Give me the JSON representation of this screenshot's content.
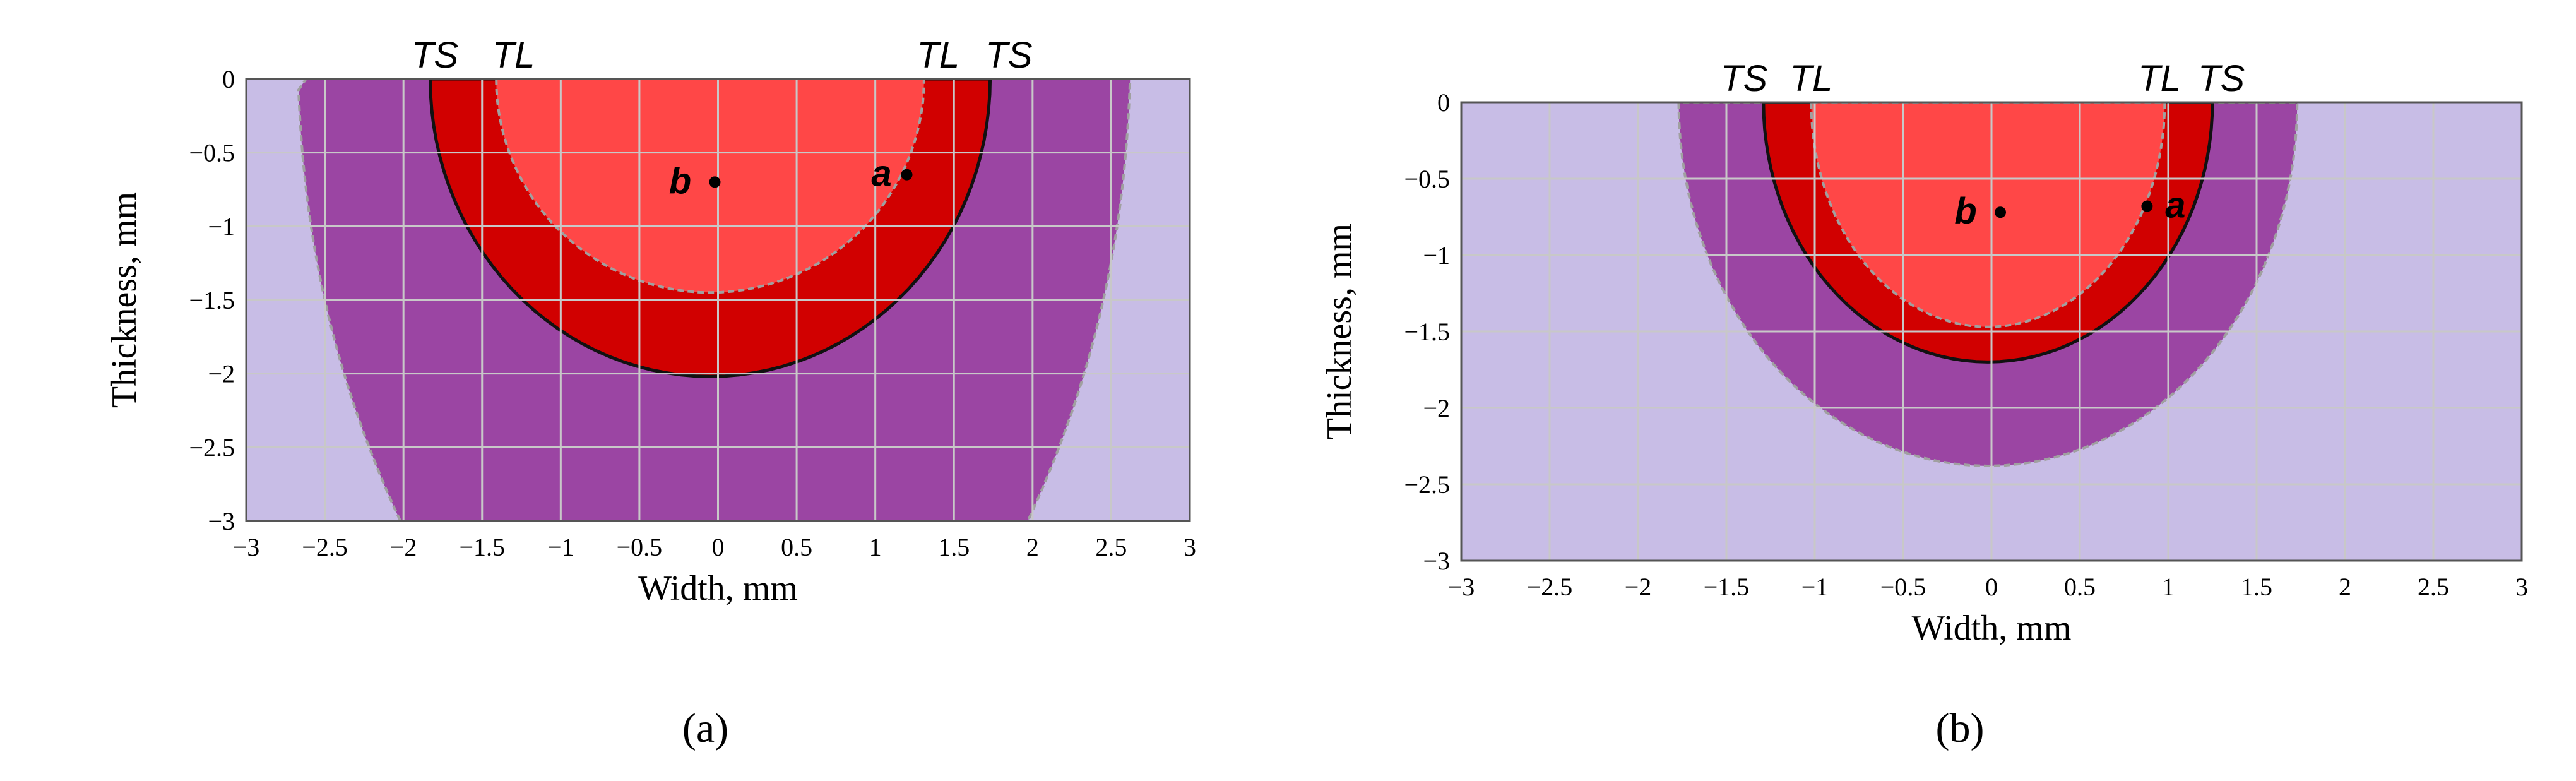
{
  "chart_data": [
    {
      "type": "area",
      "panel_label": "(a)",
      "xlabel": "Width, mm",
      "ylabel": "Thickness, mm",
      "xlim": [
        -3,
        3
      ],
      "ylim": [
        -3,
        0
      ],
      "x_ticks": [
        "−3",
        "−2.5",
        "−2",
        "−1.5",
        "−1",
        "−0.5",
        "0",
        "0.5",
        "1",
        "1.5",
        "2",
        "2.5",
        "3"
      ],
      "y_ticks": [
        "0",
        "−0.5",
        "−1",
        "−1.5",
        "−2",
        "−2.5",
        "−3"
      ],
      "grid": true,
      "regions": [
        {
          "label": "TS",
          "half_width_top": 1.78,
          "color": "#9b45a3",
          "boundary": "widening to ±2.0 at −3 mm"
        },
        {
          "label": "TL",
          "half_width_top": 1.73,
          "depth": -2.02,
          "color": "#d10000"
        },
        {
          "label": "",
          "half_width_top": 1.33,
          "depth": -1.45,
          "color": "#ff4747"
        }
      ],
      "outer_shape_color": "#9b45a3",
      "background_color": "#c8bde6",
      "boundary_labels": [
        "TS",
        "TL",
        "TL",
        "TS"
      ],
      "points": [
        {
          "label": "a",
          "x": 1.2,
          "y": -0.65
        },
        {
          "label": "b",
          "x": -0.02,
          "y": -0.7
        }
      ]
    },
    {
      "type": "area",
      "panel_label": "(b)",
      "xlabel": "Width, mm",
      "ylabel": "Thickness, mm",
      "xlim": [
        -3,
        3
      ],
      "ylim": [
        -3,
        0
      ],
      "x_ticks": [
        "−3",
        "−2.5",
        "−2",
        "−1.5",
        "−1",
        "−0.5",
        "0",
        "0.5",
        "1",
        "1.5",
        "2",
        "2.5",
        "3"
      ],
      "y_ticks": [
        "0",
        "−0.5",
        "−1",
        "−1.5",
        "−2",
        "−2.5",
        "−3"
      ],
      "grid": true,
      "regions": [
        {
          "label": "TS",
          "half_width_top": 1.25,
          "depth": -1.7,
          "color": "#d10000"
        },
        {
          "label": "TL",
          "half_width_top": 1.0,
          "depth": -1.47,
          "color": "#ff4747"
        },
        {
          "label": "",
          "half_width_top": 1.75,
          "depth": -2.38,
          "color": "#9b45a3"
        }
      ],
      "background_color": "#c8bde6",
      "boundary_labels": [
        "TS",
        "TL",
        "TL",
        "TS"
      ],
      "points": [
        {
          "label": "a",
          "x": 0.88,
          "y": -0.68
        },
        {
          "label": "b",
          "x": 0.05,
          "y": -0.72
        }
      ]
    }
  ],
  "colors": {
    "background": "#c8bde6",
    "purple": "#9b45a3",
    "dark_red": "#d10000",
    "light_red": "#ff4747",
    "grid": "#c8c8c8",
    "boundary_solid": "#111111",
    "boundary_dashed": "#a0a0a0"
  }
}
